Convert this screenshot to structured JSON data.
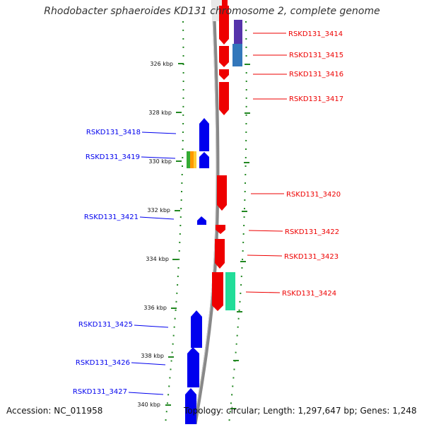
{
  "title": "Rhodobacter sphaeroides KD131 chromosome 2, complete genome",
  "footer": {
    "accession": "Accession: NC_011958",
    "summary": "Topology: circular; Length: 1,297,647 bp; Genes: 1,248"
  },
  "colors": {
    "forward": "#ee0000",
    "reverse": "#0000ee",
    "backbone": "#888888",
    "ticks": "#228822"
  },
  "ticks": [
    "326 kbp",
    "328 kbp",
    "330 kbp",
    "332 kbp",
    "334 kbp",
    "336 kbp",
    "338 kbp",
    "340 kbp"
  ],
  "forward_labels": [
    "RSKD131_3414",
    "RSKD131_3415",
    "RSKD131_3416",
    "RSKD131_3417",
    "RSKD131_3420",
    "RSKD131_3422",
    "RSKD131_3423",
    "RSKD131_3424"
  ],
  "reverse_labels": [
    "RSKD131_3418",
    "RSKD131_3419",
    "RSKD131_3421",
    "RSKD131_3425",
    "RSKD131_3426",
    "RSKD131_3427"
  ]
}
